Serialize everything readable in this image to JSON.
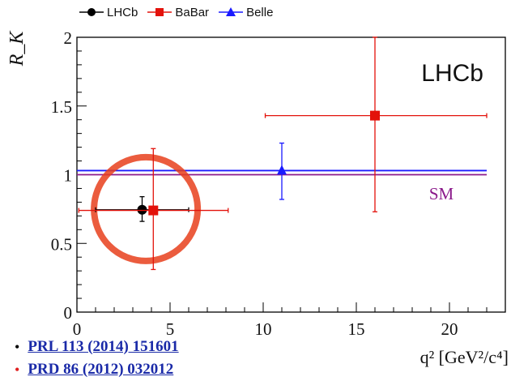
{
  "colors": {
    "lhcb": "#000000",
    "babar": "#e3120b",
    "belle": "#1a1aff",
    "sm": "#8b1a8b",
    "highlight": "#e8401c"
  },
  "legend": {
    "items": [
      {
        "label": "LHCb",
        "marker": "circle",
        "color": "#000000"
      },
      {
        "label": "BaBar",
        "marker": "square",
        "color": "#e3120b"
      },
      {
        "label": "Belle",
        "marker": "triangle",
        "color": "#1a1aff"
      }
    ]
  },
  "references": [
    {
      "text": "PRL 113 (2014) 151601"
    },
    {
      "text": "PRD 86 (2012) 032012"
    }
  ],
  "chart_data": {
    "type": "scatter",
    "title": "",
    "watermark": "LHCb",
    "xlabel": "q² [GeV²/c⁴]",
    "ylabel": "R_K",
    "xlim": [
      0,
      23
    ],
    "ylim": [
      0,
      2
    ],
    "xticks": [
      0,
      5,
      10,
      15,
      20
    ],
    "yticks": [
      0,
      0.5,
      1,
      1.5,
      2
    ],
    "xtick_labels": [
      "0",
      "5",
      "10",
      "15",
      "20"
    ],
    "ytick_labels": [
      "0",
      "0.5",
      "1",
      "1.5",
      "2"
    ],
    "series": [
      {
        "name": "LHCb",
        "marker": "circle",
        "color": "#000000",
        "points": [
          {
            "x": 3.5,
            "y": 0.745,
            "xerr": [
              1.0,
              6.0
            ],
            "yerr": [
              0.66,
              0.84
            ]
          }
        ]
      },
      {
        "name": "BaBar",
        "marker": "square",
        "color": "#e3120b",
        "points": [
          {
            "x": 4.1,
            "y": 0.74,
            "xerr": [
              0.1,
              8.12
            ],
            "yerr": [
              0.31,
              1.19
            ]
          },
          {
            "x": 16.0,
            "y": 1.43,
            "xerr": [
              10.11,
              22.0
            ],
            "yerr": [
              0.73,
              2.0
            ]
          }
        ]
      },
      {
        "name": "Belle",
        "marker": "triangle",
        "color": "#1a1aff",
        "points": [
          {
            "x": 11.0,
            "y": 1.03,
            "xerr": [
              11.0,
              11.0
            ],
            "yerr": [
              0.82,
              1.23
            ]
          }
        ]
      }
    ],
    "sm_band": {
      "label": "SM",
      "y_low": 1.0,
      "y_high": 1.03,
      "x": [
        0,
        22
      ]
    },
    "highlight_circle": {
      "x": 3.7,
      "y": 0.75
    }
  }
}
